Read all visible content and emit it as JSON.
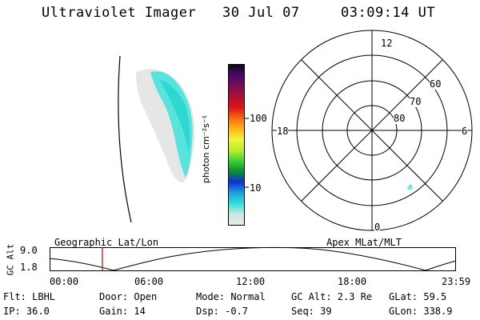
{
  "header": {
    "instrument": "Ultraviolet Imager",
    "date": "30 Jul 07",
    "time": "03:09:14 UT"
  },
  "colorbar": {
    "label": "photon cm⁻²s⁻¹",
    "ticks": [
      "100",
      "10"
    ],
    "colors": [
      "#e8ece8",
      "#c9e7e2",
      "#2fe0d6",
      "#1f9fe0",
      "#1030d8",
      "#0a8f2a",
      "#3fd23a",
      "#b9ef2a",
      "#f1f43a",
      "#ffb315",
      "#f56a10",
      "#e0101a",
      "#b0102e",
      "#7a0c54",
      "#4a0a6a",
      "#100818"
    ]
  },
  "polar": {
    "labels": {
      "top": "12",
      "bottom": "0",
      "left": "18",
      "right": "6",
      "lat60": "60",
      "lat70": "70",
      "lat80": "80"
    }
  },
  "timeline": {
    "y_axis_label": "GC Alt",
    "y_ticks": [
      "9.0",
      "1.8"
    ],
    "left_label": "Geographic Lat/Lon",
    "right_label": "Apex MLat/MLT",
    "x_ticks": [
      "00:00",
      "06:00",
      "12:00",
      "18:00",
      "23:59"
    ],
    "marker_time_fraction": 0.13
  },
  "info": {
    "row1": {
      "filter": "Flt: LBHL",
      "door": "Door: Open",
      "mode": "Mode: Normal",
      "gc_alt": "GC Alt: 2.3 Re",
      "glat": "GLat:  59.5"
    },
    "row2": {
      "ip": "IP: 36.0",
      "gain": "Gain: 14",
      "dsp": "Dsp:   -0.7",
      "seq": "Seq: 39",
      "glon": "GLon: 338.9"
    }
  }
}
